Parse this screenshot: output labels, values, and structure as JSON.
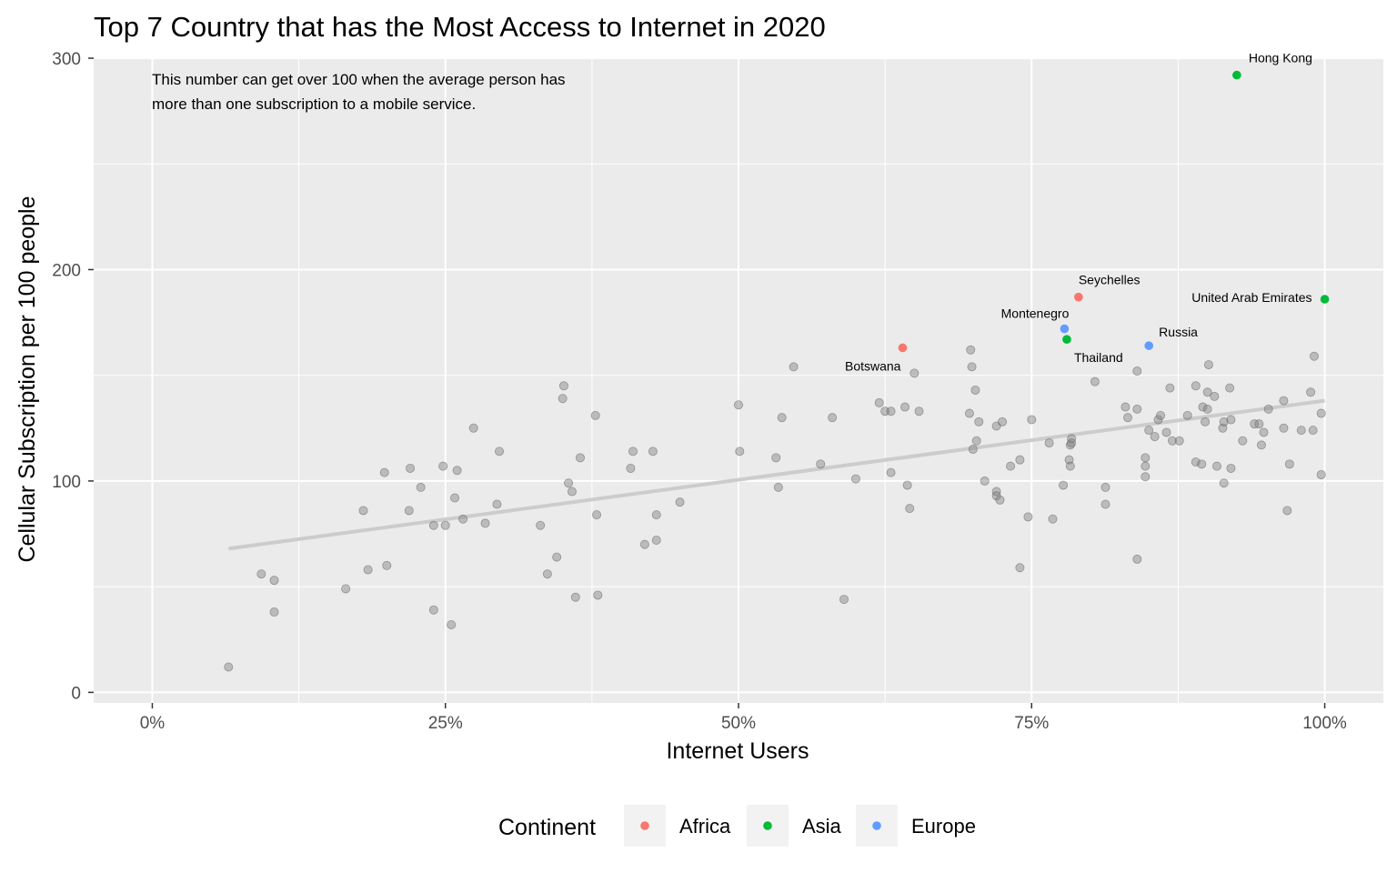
{
  "chart_data": {
    "type": "scatter",
    "title": "Top 7 Country that has the Most Access to Internet in 2020",
    "xlabel": "Internet Users",
    "ylabel": "Cellular Subscription per 100 people",
    "xlim": [
      -0.05,
      1.05
    ],
    "ylim": [
      -5,
      300
    ],
    "x_ticks": [
      {
        "value": 0,
        "label": "0%"
      },
      {
        "value": 0.25,
        "label": "25%"
      },
      {
        "value": 0.5,
        "label": "50%"
      },
      {
        "value": 0.75,
        "label": "75%"
      },
      {
        "value": 1.0,
        "label": "100%"
      }
    ],
    "y_ticks": [
      {
        "value": 0,
        "label": "0"
      },
      {
        "value": 100,
        "label": "100"
      },
      {
        "value": 200,
        "label": "200"
      },
      {
        "value": 300,
        "label": "300"
      }
    ],
    "grid": true,
    "annotation": [
      "This number can get over 100 when the average person has",
      " more than one subscription to a mobile service."
    ],
    "legend": {
      "title": "Continent",
      "position": "bottom",
      "entries": [
        {
          "name": "Africa",
          "color": "#F8766D"
        },
        {
          "name": "Asia",
          "color": "#00BA38"
        },
        {
          "name": "Europe",
          "color": "#619CFF"
        }
      ]
    },
    "trend_line": {
      "color": "#CCCCCC",
      "x": [
        0.065,
        1.0
      ],
      "y": [
        68,
        138
      ]
    },
    "highlighted": [
      {
        "label": "Hong Kong",
        "continent": "Asia",
        "x": 0.925,
        "y": 292
      },
      {
        "label": "Seychelles",
        "continent": "Africa",
        "x": 0.79,
        "y": 187
      },
      {
        "label": "United Arab Emirates",
        "continent": "Asia",
        "x": 1.0,
        "y": 186
      },
      {
        "label": "Montenegro",
        "continent": "Europe",
        "x": 0.778,
        "y": 172
      },
      {
        "label": "Thailand",
        "continent": "Asia",
        "x": 0.78,
        "y": 167
      },
      {
        "label": "Russia",
        "continent": "Europe",
        "x": 0.85,
        "y": 164
      },
      {
        "label": "Botswana",
        "continent": "Africa",
        "x": 0.64,
        "y": 163
      }
    ],
    "others_color": "#808080",
    "others": [
      [
        0.065,
        12
      ],
      [
        0.093,
        56
      ],
      [
        0.104,
        53
      ],
      [
        0.104,
        38
      ],
      [
        0.165,
        49
      ],
      [
        0.18,
        86
      ],
      [
        0.184,
        58
      ],
      [
        0.198,
        104
      ],
      [
        0.2,
        60
      ],
      [
        0.219,
        86
      ],
      [
        0.22,
        106
      ],
      [
        0.229,
        97
      ],
      [
        0.24,
        79
      ],
      [
        0.24,
        39
      ],
      [
        0.248,
        107
      ],
      [
        0.25,
        79
      ],
      [
        0.255,
        32
      ],
      [
        0.258,
        92
      ],
      [
        0.26,
        105
      ],
      [
        0.265,
        82
      ],
      [
        0.274,
        125
      ],
      [
        0.284,
        80
      ],
      [
        0.294,
        89
      ],
      [
        0.296,
        114
      ],
      [
        0.331,
        79
      ],
      [
        0.337,
        56
      ],
      [
        0.345,
        64
      ],
      [
        0.35,
        139
      ],
      [
        0.351,
        145
      ],
      [
        0.355,
        99
      ],
      [
        0.358,
        95
      ],
      [
        0.361,
        45
      ],
      [
        0.365,
        111
      ],
      [
        0.378,
        131
      ],
      [
        0.379,
        84
      ],
      [
        0.38,
        46
      ],
      [
        0.408,
        106
      ],
      [
        0.41,
        114
      ],
      [
        0.42,
        70
      ],
      [
        0.427,
        114
      ],
      [
        0.43,
        84
      ],
      [
        0.43,
        72
      ],
      [
        0.45,
        90
      ],
      [
        0.5,
        136
      ],
      [
        0.501,
        114
      ],
      [
        0.532,
        111
      ],
      [
        0.534,
        97
      ],
      [
        0.537,
        130
      ],
      [
        0.547,
        154
      ],
      [
        0.57,
        108
      ],
      [
        0.58,
        130
      ],
      [
        0.59,
        44
      ],
      [
        0.6,
        101
      ],
      [
        0.62,
        137
      ],
      [
        0.625,
        133
      ],
      [
        0.63,
        133
      ],
      [
        0.63,
        104
      ],
      [
        0.642,
        135
      ],
      [
        0.644,
        98
      ],
      [
        0.646,
        87
      ],
      [
        0.65,
        151
      ],
      [
        0.654,
        133
      ],
      [
        0.697,
        132
      ],
      [
        0.698,
        162
      ],
      [
        0.699,
        154
      ],
      [
        0.7,
        115
      ],
      [
        0.702,
        143
      ],
      [
        0.703,
        119
      ],
      [
        0.705,
        128
      ],
      [
        0.71,
        100
      ],
      [
        0.72,
        126
      ],
      [
        0.72,
        95
      ],
      [
        0.72,
        93
      ],
      [
        0.723,
        91
      ],
      [
        0.725,
        128
      ],
      [
        0.732,
        107
      ],
      [
        0.74,
        110
      ],
      [
        0.74,
        59
      ],
      [
        0.747,
        83
      ],
      [
        0.75,
        129
      ],
      [
        0.765,
        118
      ],
      [
        0.768,
        82
      ],
      [
        0.777,
        98
      ],
      [
        0.782,
        110
      ],
      [
        0.783,
        107
      ],
      [
        0.783,
        117
      ],
      [
        0.784,
        120
      ],
      [
        0.784,
        118
      ],
      [
        0.804,
        147
      ],
      [
        0.813,
        97
      ],
      [
        0.813,
        89
      ],
      [
        0.83,
        135
      ],
      [
        0.832,
        130
      ],
      [
        0.84,
        134
      ],
      [
        0.84,
        152
      ],
      [
        0.84,
        63
      ],
      [
        0.847,
        111
      ],
      [
        0.847,
        107
      ],
      [
        0.847,
        102
      ],
      [
        0.85,
        124
      ],
      [
        0.855,
        121
      ],
      [
        0.858,
        129
      ],
      [
        0.86,
        131
      ],
      [
        0.865,
        123
      ],
      [
        0.868,
        144
      ],
      [
        0.87,
        119
      ],
      [
        0.876,
        119
      ],
      [
        0.883,
        131
      ],
      [
        0.89,
        145
      ],
      [
        0.89,
        109
      ],
      [
        0.895,
        108
      ],
      [
        0.896,
        135
      ],
      [
        0.898,
        128
      ],
      [
        0.9,
        134
      ],
      [
        0.9,
        142
      ],
      [
        0.901,
        155
      ],
      [
        0.906,
        140
      ],
      [
        0.908,
        107
      ],
      [
        0.913,
        125
      ],
      [
        0.914,
        99
      ],
      [
        0.914,
        128
      ],
      [
        0.919,
        144
      ],
      [
        0.92,
        106
      ],
      [
        0.92,
        129
      ],
      [
        0.93,
        119
      ],
      [
        0.94,
        127
      ],
      [
        0.944,
        127
      ],
      [
        0.946,
        117
      ],
      [
        0.948,
        123
      ],
      [
        0.952,
        134
      ],
      [
        0.965,
        138
      ],
      [
        0.965,
        125
      ],
      [
        0.968,
        86
      ],
      [
        0.97,
        108
      ],
      [
        0.98,
        124
      ],
      [
        0.988,
        142
      ],
      [
        0.99,
        124
      ],
      [
        0.991,
        159
      ],
      [
        0.997,
        132
      ],
      [
        0.997,
        103
      ]
    ]
  }
}
